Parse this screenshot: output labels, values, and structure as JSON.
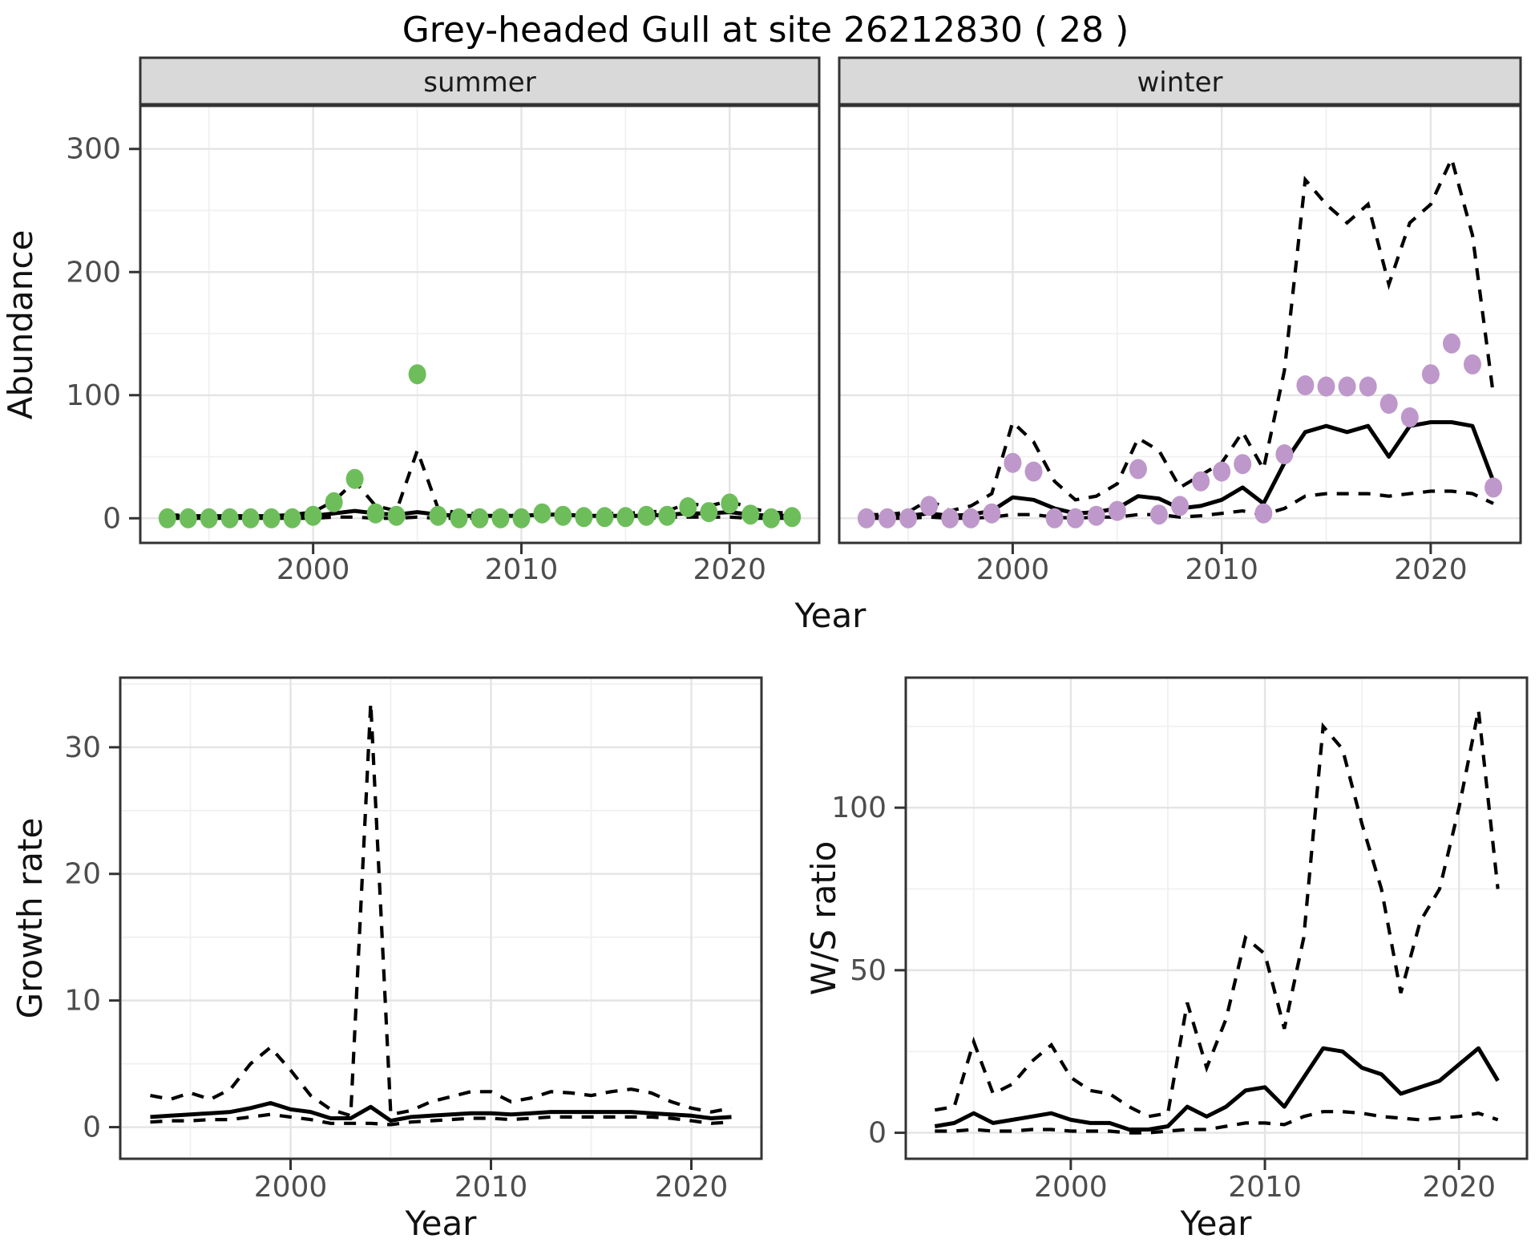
{
  "title": "Grey-headed Gull at site 26212830 ( 28 )",
  "colors": {
    "summer_point": "#6dbe5b",
    "winter_point": "#be98ca",
    "fit_line": "#000000",
    "ci_line": "#000000",
    "strip_bg": "#d9d9d9",
    "panel_border": "#333333",
    "panel_bg": "#ffffff",
    "grid_major": "#e4e4e4",
    "grid_minor": "#f0f0f0",
    "tick_text": "#4d4d4d"
  },
  "chart_data": [
    {
      "id": "abundance_summer",
      "type": "scatter",
      "facet_label": "summer",
      "xlabel": "Year",
      "ylabel": "Abundance",
      "x_ticks": [
        2000,
        2010,
        2020
      ],
      "x_minor": [
        1995,
        2005,
        2015
      ],
      "y_ticks": [
        0,
        100,
        200,
        300
      ],
      "y_minor": [
        50,
        150,
        250
      ],
      "xlim": [
        1991.7,
        2024.3
      ],
      "ylim": [
        -20,
        335
      ],
      "years": [
        1993,
        1994,
        1995,
        1996,
        1997,
        1998,
        1999,
        2000,
        2001,
        2002,
        2003,
        2004,
        2005,
        2006,
        2007,
        2008,
        2009,
        2010,
        2011,
        2012,
        2013,
        2014,
        2015,
        2016,
        2017,
        2018,
        2019,
        2020,
        2021,
        2022,
        2023
      ],
      "points": [
        0,
        0,
        0,
        0,
        0,
        0,
        0,
        2,
        13,
        32,
        4,
        2,
        117,
        2,
        0,
        0,
        0,
        0,
        4,
        2,
        1,
        1,
        1,
        2,
        2,
        9,
        5,
        12,
        3,
        0,
        1
      ],
      "fit": [
        1,
        1,
        1,
        1,
        1,
        1,
        1,
        2,
        4,
        6,
        4,
        3,
        5,
        3,
        2,
        2,
        2,
        2,
        3,
        3,
        2,
        2,
        2,
        2,
        3,
        4,
        4,
        5,
        3,
        2,
        2
      ],
      "upper_ci": [
        3,
        2,
        2,
        2,
        2,
        2,
        3,
        5,
        14,
        30,
        10,
        6,
        55,
        8,
        4,
        4,
        4,
        4,
        6,
        5,
        4,
        4,
        4,
        5,
        6,
        12,
        10,
        14,
        8,
        5,
        4
      ],
      "lower_ci": [
        0,
        0,
        0,
        0,
        0,
        0,
        0,
        0,
        1,
        1,
        0,
        0,
        1,
        0,
        0,
        0,
        0,
        0,
        1,
        1,
        0,
        0,
        0,
        0,
        1,
        1,
        1,
        1,
        0,
        0,
        0
      ],
      "point_color": "#6dbe5b"
    },
    {
      "id": "abundance_winter",
      "type": "scatter",
      "facet_label": "winter",
      "xlabel": "",
      "ylabel": "",
      "x_ticks": [
        2000,
        2010,
        2020
      ],
      "x_minor": [
        1995,
        2005,
        2015
      ],
      "y_ticks": [
        0,
        100,
        200,
        300
      ],
      "y_minor": [
        50,
        150,
        250
      ],
      "xlim": [
        1991.7,
        2024.3
      ],
      "ylim": [
        -20,
        335
      ],
      "years": [
        1993,
        1994,
        1995,
        1996,
        1997,
        1998,
        1999,
        2000,
        2001,
        2002,
        2003,
        2004,
        2005,
        2006,
        2007,
        2008,
        2009,
        2010,
        2011,
        2012,
        2013,
        2014,
        2015,
        2016,
        2017,
        2018,
        2019,
        2020,
        2021,
        2022,
        2023
      ],
      "points": [
        0,
        0,
        0,
        10,
        0,
        0,
        4,
        45,
        38,
        0,
        0,
        2,
        6,
        40,
        3,
        10,
        30,
        38,
        44,
        4,
        52,
        108,
        107,
        107,
        107,
        93,
        82,
        117,
        142,
        125,
        25
      ],
      "fit": [
        1,
        1,
        2,
        4,
        2,
        3,
        6,
        17,
        15,
        8,
        4,
        5,
        8,
        18,
        16,
        8,
        10,
        15,
        25,
        12,
        45,
        70,
        75,
        70,
        75,
        50,
        75,
        78,
        78,
        75,
        30
      ],
      "upper_ci": [
        3,
        3,
        5,
        15,
        6,
        10,
        20,
        78,
        62,
        30,
        15,
        18,
        28,
        65,
        55,
        25,
        35,
        45,
        70,
        40,
        120,
        275,
        255,
        240,
        255,
        190,
        240,
        255,
        292,
        230,
        100
      ],
      "lower_ci": [
        0,
        0,
        0,
        1,
        0,
        0,
        1,
        3,
        3,
        1,
        0,
        1,
        1,
        3,
        3,
        1,
        2,
        4,
        6,
        3,
        8,
        18,
        20,
        20,
        20,
        18,
        20,
        22,
        22,
        20,
        12
      ],
      "point_color": "#be98ca"
    },
    {
      "id": "growth_rate",
      "type": "line",
      "facet_label": "",
      "xlabel": "Year",
      "ylabel": "Growth rate",
      "x_ticks": [
        2000,
        2010,
        2020
      ],
      "x_minor": [
        1995,
        2005,
        2015
      ],
      "y_ticks": [
        0,
        10,
        20,
        30
      ],
      "y_minor": [
        5,
        15,
        25,
        35
      ],
      "xlim": [
        1991.5,
        2023.5
      ],
      "ylim": [
        -2.5,
        35.5
      ],
      "years": [
        1993,
        1994,
        1995,
        1996,
        1997,
        1998,
        1999,
        2000,
        2001,
        2002,
        2003,
        2004,
        2005,
        2006,
        2007,
        2008,
        2009,
        2010,
        2011,
        2012,
        2013,
        2014,
        2015,
        2016,
        2017,
        2018,
        2019,
        2020,
        2021,
        2022
      ],
      "points": null,
      "fit": [
        0.8,
        0.9,
        1.0,
        1.1,
        1.2,
        1.5,
        1.9,
        1.4,
        1.2,
        0.7,
        0.7,
        1.6,
        0.5,
        0.8,
        0.9,
        1.0,
        1.1,
        1.1,
        1.0,
        1.1,
        1.2,
        1.2,
        1.2,
        1.2,
        1.2,
        1.1,
        1.0,
        0.9,
        0.7,
        0.8
      ],
      "upper_ci": [
        2.5,
        2.2,
        2.7,
        2.2,
        3.0,
        5.0,
        6.3,
        4.5,
        2.5,
        1.4,
        0.9,
        33.5,
        1.0,
        1.3,
        2.0,
        2.4,
        2.8,
        2.8,
        2.0,
        2.3,
        2.8,
        2.7,
        2.5,
        2.8,
        3.0,
        2.7,
        2.0,
        1.5,
        1.2,
        1.5
      ],
      "lower_ci": [
        0.4,
        0.5,
        0.5,
        0.6,
        0.6,
        0.8,
        1.0,
        0.8,
        0.6,
        0.3,
        0.3,
        0.3,
        0.2,
        0.4,
        0.5,
        0.6,
        0.7,
        0.7,
        0.6,
        0.7,
        0.8,
        0.8,
        0.8,
        0.8,
        0.8,
        0.8,
        0.7,
        0.5,
        0.3,
        0.4
      ],
      "point_color": null
    },
    {
      "id": "ws_ratio",
      "type": "line",
      "facet_label": "",
      "xlabel": "Year",
      "ylabel": "W/S ratio",
      "x_ticks": [
        2000,
        2010,
        2020
      ],
      "x_minor": [
        1995,
        2005,
        2015
      ],
      "y_ticks": [
        0,
        50,
        100
      ],
      "y_minor": [
        25,
        75,
        125
      ],
      "xlim": [
        1991.5,
        2023.5
      ],
      "ylim": [
        -8,
        140
      ],
      "years": [
        1993,
        1994,
        1995,
        1996,
        1997,
        1998,
        1999,
        2000,
        2001,
        2002,
        2003,
        2004,
        2005,
        2006,
        2007,
        2008,
        2009,
        2010,
        2011,
        2012,
        2013,
        2014,
        2015,
        2016,
        2017,
        2018,
        2019,
        2020,
        2021,
        2022
      ],
      "points": null,
      "fit": [
        2,
        3,
        6,
        3,
        4,
        5,
        6,
        4,
        3,
        3,
        1,
        1,
        2,
        8,
        5,
        8,
        13,
        14,
        8,
        17,
        26,
        25,
        20,
        18,
        12,
        14,
        16,
        21,
        26,
        16
      ],
      "upper_ci": [
        7,
        8,
        28,
        12,
        15,
        22,
        27,
        17,
        13,
        12,
        8,
        5,
        6,
        40,
        20,
        35,
        60,
        55,
        32,
        60,
        125,
        118,
        95,
        75,
        43,
        65,
        75,
        100,
        130,
        75
      ],
      "lower_ci": [
        0.5,
        0.5,
        1,
        0.5,
        0.5,
        1,
        1,
        0.5,
        0.5,
        0.5,
        0,
        0,
        0.5,
        1,
        1,
        2,
        3,
        3,
        2.5,
        5,
        6.5,
        6.5,
        6,
        5,
        4.5,
        4,
        4.5,
        5,
        6,
        4
      ],
      "point_color": null
    }
  ]
}
